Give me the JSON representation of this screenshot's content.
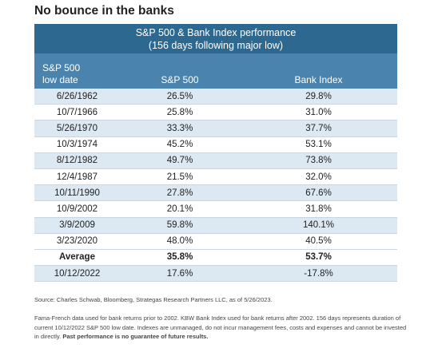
{
  "header": {
    "title": "No bounce in the banks"
  },
  "table": {
    "title_lines": [
      "S&P 500 & Bank Index performance",
      "(156 days following major low)"
    ],
    "columns": [
      [
        "S&P 500",
        "low date"
      ],
      [
        "S&P 500"
      ],
      [
        "Bank Index"
      ]
    ],
    "rows": [
      [
        "6/26/1962",
        "26.5%",
        "29.8%"
      ],
      [
        "10/7/1966",
        "25.8%",
        "31.0%"
      ],
      [
        "5/26/1970",
        "33.3%",
        "37.7%"
      ],
      [
        "10/3/1974",
        "45.2%",
        "53.1%"
      ],
      [
        "8/12/1982",
        "49.7%",
        "73.8%"
      ],
      [
        "12/4/1987",
        "21.5%",
        "32.0%"
      ],
      [
        "10/11/1990",
        "27.8%",
        "67.6%"
      ],
      [
        "10/9/2002",
        "20.1%",
        "31.8%"
      ],
      [
        "3/9/2009",
        "59.8%",
        "140.1%"
      ],
      [
        "3/23/2020",
        "48.0%",
        "40.5%"
      ],
      [
        "Average",
        "35.8%",
        "53.7%"
      ],
      [
        "10/12/2022",
        "17.6%",
        "-17.8%"
      ]
    ]
  },
  "footnotes": {
    "source": "Source: Charles Schwab, Bloomberg, Strategas Research Partners LLC, as of 5/26/2023.",
    "note": "Fama-French data used for bank returns prior to 2002. KBW Bank Index used for bank returns after 2002. 156 days represents duration of current 10/12/2022 S&P 500 low date. Indexes are unmanaged, do not incur management fees, costs and expenses and cannot be invested in directly.",
    "disclaimer": "Past performance is no guarantee of future results."
  }
}
